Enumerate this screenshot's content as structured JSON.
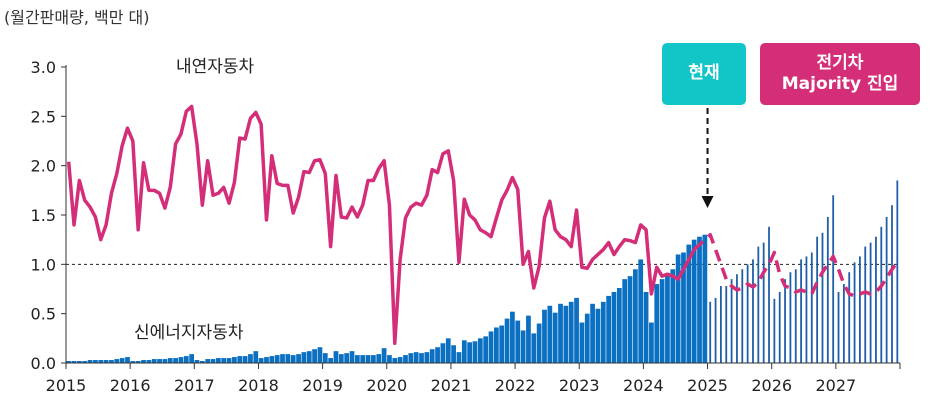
{
  "unit_label": "(월간판매량, 백만 대)",
  "annotations": {
    "now": "현재",
    "ev_line1": "전기차",
    "ev_line2": "Majority 진입"
  },
  "colors": {
    "ice": "#D42E78",
    "nev_actual": "#0B6FC2",
    "nev_forecast": "#1F5FA8",
    "now_box": "#12C6C7",
    "ev_box": "#D42E78"
  },
  "chart_data": {
    "type": "bar+line",
    "title": "",
    "xlabel": "",
    "ylabel": "",
    "ylim": [
      0,
      3.0
    ],
    "yticks": [
      "0.0",
      "0.5",
      "1.0",
      "1.5",
      "2.0",
      "2.5",
      "3.0"
    ],
    "xticks": [
      "2015",
      "2016",
      "2017",
      "2018",
      "2019",
      "2020",
      "2021",
      "2022",
      "2023",
      "2024",
      "2025",
      "2026",
      "2027"
    ],
    "x_start": "2015-01",
    "reference_line": 1.0,
    "series": [
      {
        "name": "내연자동차",
        "kind": "line",
        "values": [
          2.04,
          1.4,
          1.85,
          1.65,
          1.58,
          1.48,
          1.25,
          1.4,
          1.72,
          1.92,
          2.2,
          2.38,
          2.25,
          1.35,
          2.03,
          1.75,
          1.75,
          1.72,
          1.57,
          1.78,
          2.22,
          2.32,
          2.55,
          2.6,
          2.22,
          1.6,
          2.05,
          1.7,
          1.72,
          1.78,
          1.62,
          1.83,
          2.28,
          2.27,
          2.48,
          2.54,
          2.42,
          1.45,
          2.1,
          1.82,
          1.8,
          1.8,
          1.52,
          1.68,
          1.94,
          1.93,
          2.05,
          2.06,
          1.92,
          1.18,
          1.9,
          1.48,
          1.47,
          1.58,
          1.48,
          1.6,
          1.85,
          1.85,
          1.97,
          2.05,
          1.6,
          0.2,
          1.05,
          1.47,
          1.58,
          1.62,
          1.6,
          1.7,
          1.96,
          1.93,
          2.12,
          2.15,
          1.85,
          1.02,
          1.66,
          1.5,
          1.45,
          1.35,
          1.32,
          1.28,
          1.47,
          1.65,
          1.75,
          1.88,
          1.76,
          1.0,
          1.13,
          0.76,
          0.98,
          1.47,
          1.64,
          1.35,
          1.28,
          1.25,
          1.18,
          1.55,
          0.97,
          0.96,
          1.05,
          1.1,
          1.15,
          1.22,
          1.1,
          1.18,
          1.25,
          1.24,
          1.22,
          1.4,
          1.35,
          0.7,
          0.97,
          0.88,
          0.9,
          0.88,
          0.85,
          0.95,
          1.05,
          1.15
        ]
      },
      {
        "name": "신에너지자동차",
        "kind": "bar",
        "values": [
          0.02,
          0.02,
          0.02,
          0.02,
          0.03,
          0.03,
          0.03,
          0.03,
          0.03,
          0.04,
          0.05,
          0.06,
          0.02,
          0.02,
          0.03,
          0.03,
          0.04,
          0.04,
          0.04,
          0.05,
          0.05,
          0.06,
          0.07,
          0.09,
          0.03,
          0.02,
          0.04,
          0.04,
          0.05,
          0.05,
          0.05,
          0.06,
          0.07,
          0.07,
          0.09,
          0.12,
          0.05,
          0.06,
          0.07,
          0.08,
          0.09,
          0.09,
          0.08,
          0.09,
          0.11,
          0.12,
          0.14,
          0.16,
          0.1,
          0.05,
          0.12,
          0.09,
          0.1,
          0.12,
          0.08,
          0.08,
          0.08,
          0.08,
          0.09,
          0.15,
          0.08,
          0.05,
          0.06,
          0.08,
          0.1,
          0.11,
          0.1,
          0.11,
          0.14,
          0.16,
          0.2,
          0.25,
          0.18,
          0.11,
          0.23,
          0.21,
          0.22,
          0.25,
          0.27,
          0.32,
          0.36,
          0.38,
          0.45,
          0.52,
          0.43,
          0.33,
          0.48,
          0.3,
          0.4,
          0.54,
          0.58,
          0.51,
          0.6,
          0.58,
          0.62,
          0.66,
          0.41,
          0.5,
          0.6,
          0.55,
          0.62,
          0.68,
          0.72,
          0.76,
          0.85,
          0.88,
          0.95,
          1.05,
          0.72,
          0.41,
          0.8,
          0.85,
          0.9,
          0.95,
          1.1,
          1.12,
          1.2,
          1.25,
          1.28,
          1.3
        ]
      },
      {
        "name": "",
        "kind": "line-forecast",
        "values": [
          1.3,
          1.15,
          1.0,
          0.85,
          0.78,
          0.74,
          0.76,
          0.8,
          0.77,
          0.82,
          0.92,
          1.0,
          1.12,
          0.9,
          0.78,
          0.76,
          0.72,
          0.74,
          0.72,
          0.7,
          0.82,
          0.92,
          1.0,
          1.08,
          0.95,
          0.8,
          0.7,
          0.68,
          0.7,
          0.72,
          0.7,
          0.72,
          0.78,
          0.86,
          0.95,
          1.02
        ]
      },
      {
        "name": "",
        "kind": "bar-forecast",
        "values": [
          0.62,
          0.66,
          0.78,
          0.78,
          0.85,
          0.9,
          0.95,
          1.0,
          1.05,
          1.18,
          1.22,
          1.38,
          0.65,
          0.72,
          0.85,
          0.92,
          0.95,
          1.05,
          1.08,
          1.12,
          1.28,
          1.32,
          1.48,
          1.7,
          0.72,
          0.8,
          0.92,
          1.02,
          1.08,
          1.18,
          1.22,
          1.28,
          1.38,
          1.48,
          1.6,
          1.85
        ]
      }
    ]
  }
}
